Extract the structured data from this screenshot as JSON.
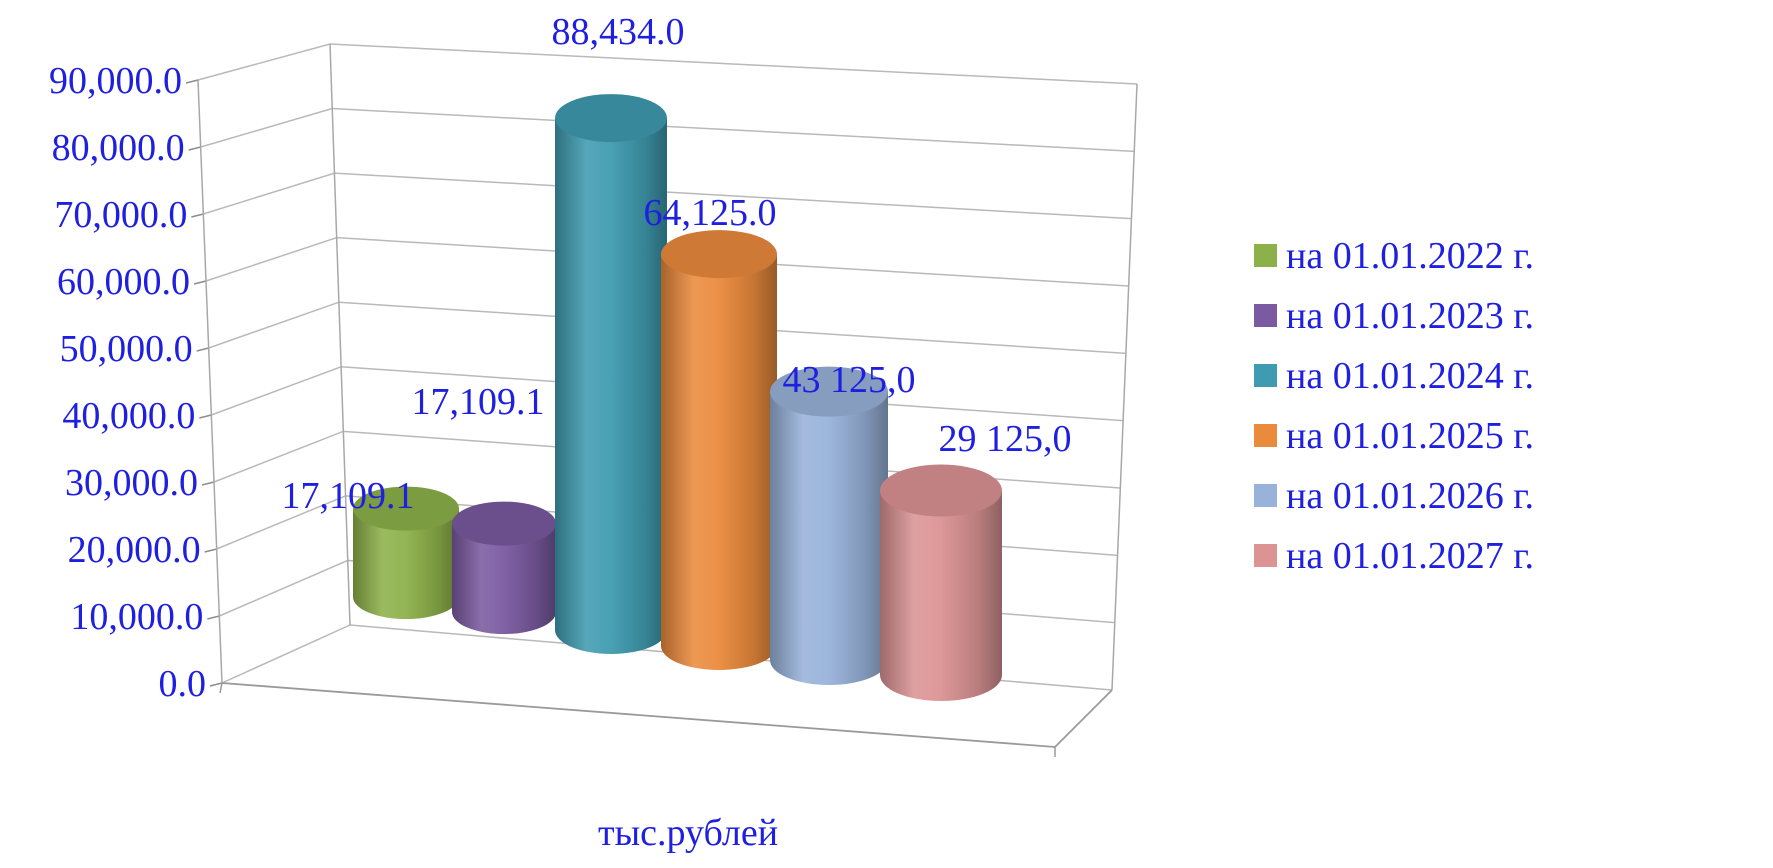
{
  "chart_data": {
    "type": "bar",
    "style": "3d-cylinder",
    "categories": [
      "тыс.рублей"
    ],
    "xlabel": "тыс.рублей",
    "ylabel": "",
    "title": "",
    "ylim": [
      0,
      90000
    ],
    "y_ticks": [
      0,
      10000,
      20000,
      30000,
      40000,
      50000,
      60000,
      70000,
      80000,
      90000
    ],
    "y_tick_labels": [
      "0.0",
      "10,000.0",
      "20,000.0",
      "30,000.0",
      "40,000.0",
      "50,000.0",
      "60,000.0",
      "70,000.0",
      "80,000.0",
      "90,000.0"
    ],
    "grid": true,
    "legend_position": "right",
    "text_color": "#1f1fe0",
    "series": [
      {
        "name": "на 01.01.2022 г.",
        "values": [
          17109.1
        ],
        "data_label": "17,109.1",
        "color": "#8db14a"
      },
      {
        "name": "на 01.01.2023 г.",
        "values": [
          17109.1
        ],
        "data_label": "17,109.1",
        "color": "#7a5aa0"
      },
      {
        "name": "на 01.01.2024 г.",
        "values": [
          88434.0
        ],
        "data_label": "88,434.0",
        "color": "#3f9bb0"
      },
      {
        "name": "на 01.01.2025 г.",
        "values": [
          64125.0
        ],
        "data_label": "64,125.0",
        "color": "#ea8a3c"
      },
      {
        "name": "на 01.01.2026 г.",
        "values": [
          43125.0
        ],
        "data_label": "43 125,0",
        "color": "#98b2d9"
      },
      {
        "name": "на 01.01.2027 г.",
        "values": [
          29125.0
        ],
        "data_label": "29 125,0",
        "color": "#db9394"
      }
    ]
  }
}
